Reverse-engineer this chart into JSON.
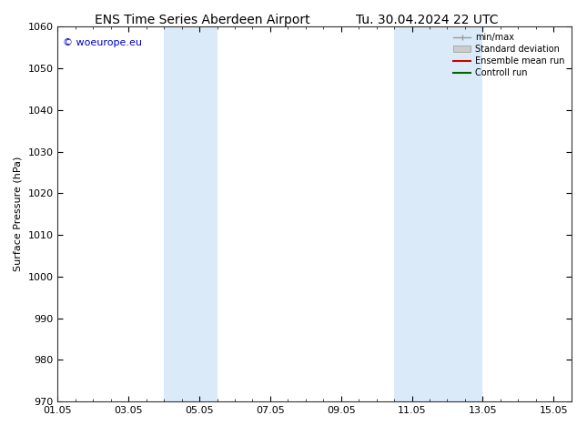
{
  "title_left": "ENS Time Series Aberdeen Airport",
  "title_right": "Tu. 30.04.2024 22 UTC",
  "ylabel": "Surface Pressure (hPa)",
  "ylim": [
    970,
    1060
  ],
  "yticks": [
    970,
    980,
    990,
    1000,
    1010,
    1020,
    1030,
    1040,
    1050,
    1060
  ],
  "xlim_start": 0.0,
  "xlim_end": 14.5,
  "xtick_labels": [
    "01.05",
    "03.05",
    "05.05",
    "07.05",
    "09.05",
    "11.05",
    "13.05",
    "15.05"
  ],
  "xtick_positions": [
    0,
    2,
    4,
    6,
    8,
    10,
    12,
    14
  ],
  "xtick_minor_step": 0.5,
  "shaded_bands": [
    {
      "x_start": 3.0,
      "x_end": 4.5
    },
    {
      "x_start": 9.5,
      "x_end": 12.0
    }
  ],
  "shaded_color": "#daeaf8",
  "watermark_text": "© woeurope.eu",
  "watermark_color": "#0000cc",
  "legend_entries": [
    {
      "label": "min/max",
      "color": "#999999",
      "type": "minmax"
    },
    {
      "label": "Standard deviation",
      "color": "#cccccc",
      "type": "patch"
    },
    {
      "label": "Ensemble mean run",
      "color": "#cc0000",
      "type": "line"
    },
    {
      "label": "Controll run",
      "color": "#006600",
      "type": "line"
    }
  ],
  "bg_color": "#ffffff",
  "title_fontsize": 10,
  "axis_label_fontsize": 8,
  "tick_fontsize": 8,
  "legend_fontsize": 7
}
